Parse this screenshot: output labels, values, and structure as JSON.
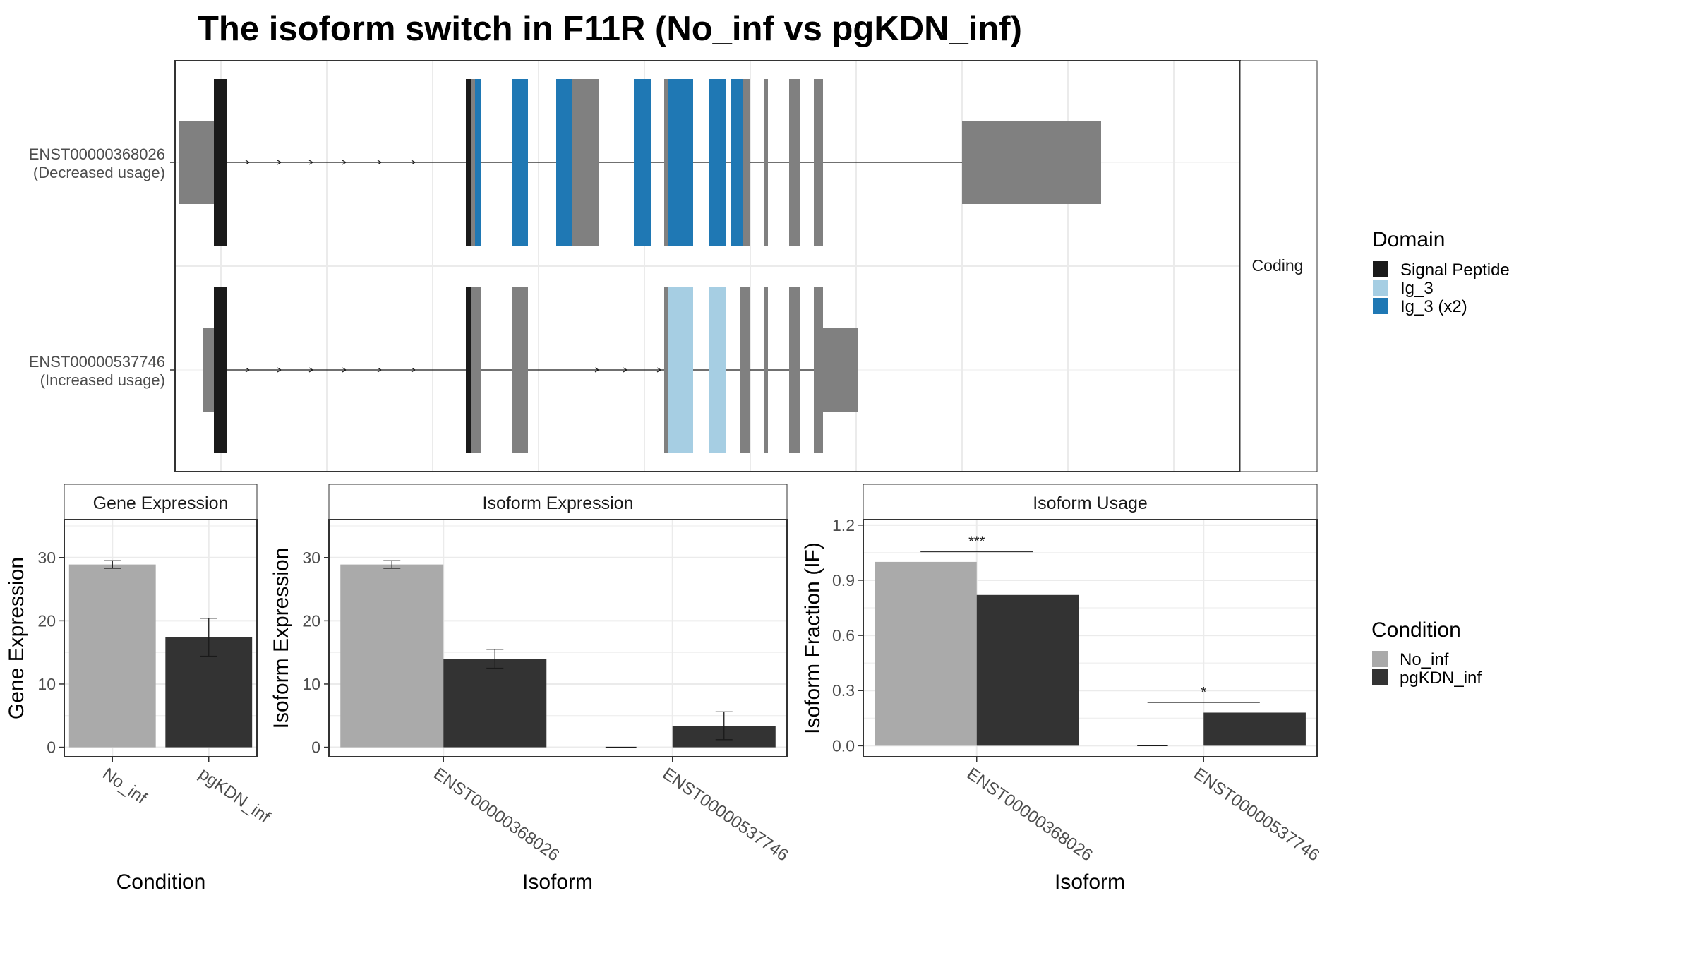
{
  "title": "The isoform switch in F11R (No_inf vs pgKDN_inf)",
  "colors": {
    "signal_peptide": "#1a1a1a",
    "ig3": "#a6cee3",
    "ig3_x2": "#1f78b4",
    "exon": "#808080",
    "no_inf": "#aaaaaa",
    "pgkdn_inf": "#333333"
  },
  "structure": {
    "facet_label": "Coding",
    "transcripts": [
      {
        "id": "ENST00000368026",
        "usage": "(Decreased usage)",
        "noncoding_exons": [
          [
            5,
            55
          ],
          [
            1115,
            1163
          ],
          [
            1163,
            1312
          ]
        ],
        "coding_exons": [
          [
            55,
            74
          ],
          [
            412,
            433
          ],
          [
            477,
            500
          ],
          [
            540,
            600
          ],
          [
            650,
            675
          ],
          [
            693,
            725
          ],
          [
            756,
            780
          ],
          [
            800,
            815
          ],
          [
            835,
            840
          ],
          [
            870,
            885
          ],
          [
            905,
            918
          ]
        ],
        "domains": [
          {
            "domain": "signal",
            "start": 55,
            "end": 74
          },
          {
            "domain": "signal",
            "start": 412,
            "end": 420
          },
          {
            "domain": "ig3_x2",
            "start": 425,
            "end": 433
          },
          {
            "domain": "ig3_x2",
            "start": 477,
            "end": 500
          },
          {
            "domain": "ig3_x2",
            "start": 540,
            "end": 563
          },
          {
            "domain": "ig3_x2",
            "start": 650,
            "end": 675
          },
          {
            "domain": "ig3_x2",
            "start": 699,
            "end": 734
          },
          {
            "domain": "ig3_x2",
            "start": 756,
            "end": 780
          },
          {
            "domain": "ig3_x2",
            "start": 788,
            "end": 805
          }
        ],
        "intron_arrows": [
          105,
          150,
          195,
          242,
          292,
          340
        ]
      },
      {
        "id": "ENST00000537746",
        "usage": "(Increased usage)",
        "noncoding_exons": [
          [
            40,
            55
          ],
          [
            905,
            918
          ],
          [
            918,
            968
          ]
        ],
        "coding_exons": [
          [
            55,
            74
          ],
          [
            412,
            433
          ],
          [
            477,
            500
          ],
          [
            693,
            725
          ],
          [
            756,
            780
          ],
          [
            800,
            815
          ],
          [
            835,
            840
          ],
          [
            870,
            885
          ],
          [
            905,
            918
          ]
        ],
        "domains": [
          {
            "domain": "signal",
            "start": 55,
            "end": 74
          },
          {
            "domain": "signal",
            "start": 412,
            "end": 420
          },
          {
            "domain": "ig3",
            "start": 699,
            "end": 734
          },
          {
            "domain": "ig3",
            "start": 756,
            "end": 780
          }
        ],
        "intron_arrows": [
          105,
          150,
          195,
          242,
          292,
          340,
          600,
          640,
          688
        ]
      }
    ]
  },
  "legend_domain": {
    "title": "Domain",
    "items": [
      {
        "label": "Signal Peptide",
        "key": "signal_peptide"
      },
      {
        "label": "Ig_3",
        "key": "ig3"
      },
      {
        "label": "Ig_3 (x2)",
        "key": "ig3_x2"
      }
    ]
  },
  "legend_condition": {
    "title": "Condition",
    "items": [
      {
        "label": "No_inf",
        "key": "no_inf"
      },
      {
        "label": "pgKDN_inf",
        "key": "pgkdn_inf"
      }
    ]
  },
  "chart_data": [
    {
      "type": "bar",
      "title": "Gene Expression",
      "xlabel": "Condition",
      "ylabel": "Gene Expression",
      "categories": [
        "No_inf",
        "pgKDN_inf"
      ],
      "values": [
        28.9,
        17.4
      ],
      "errors": [
        [
          28.3,
          29.5
        ],
        [
          14.4,
          20.4
        ]
      ],
      "ylim": [
        -1.5,
        36
      ],
      "yticks": [
        0,
        10,
        20,
        30
      ],
      "ytick_labels": [
        "0",
        "10",
        "20",
        "30"
      ]
    },
    {
      "type": "bar",
      "title": "Isoform Expression",
      "xlabel": "Isoform",
      "ylabel": "Isoform Expression",
      "categories": [
        "ENST00000368026",
        "ENST00000537746"
      ],
      "series": [
        {
          "name": "No_inf",
          "values": [
            28.9,
            0
          ],
          "errors": [
            [
              28.3,
              29.5
            ],
            [
              0,
              0
            ]
          ]
        },
        {
          "name": "pgKDN_inf",
          "values": [
            14.0,
            3.4
          ],
          "errors": [
            [
              12.5,
              15.5
            ],
            [
              1.2,
              5.6
            ]
          ]
        }
      ],
      "ylim": [
        -1.5,
        36
      ],
      "yticks": [
        0,
        10,
        20,
        30
      ],
      "ytick_labels": [
        "0",
        "10",
        "20",
        "30"
      ]
    },
    {
      "type": "bar",
      "title": "Isoform Usage",
      "xlabel": "Isoform",
      "ylabel": "Isoform Fraction (IF)",
      "categories": [
        "ENST00000368026",
        "ENST00000537746"
      ],
      "series": [
        {
          "name": "No_inf",
          "values": [
            1.0,
            0
          ]
        },
        {
          "name": "pgKDN_inf",
          "values": [
            0.82,
            0.18
          ]
        }
      ],
      "significance": [
        {
          "label": "***",
          "category": 0,
          "y": 1.055
        },
        {
          "label": "*",
          "category": 1,
          "y": 0.235
        }
      ],
      "ylim": [
        -0.06,
        1.23
      ],
      "yticks": [
        0,
        0.3,
        0.6,
        0.9,
        1.2
      ],
      "ytick_labels": [
        "0.0",
        "0.3",
        "0.6",
        "0.9",
        "1.2"
      ]
    }
  ]
}
